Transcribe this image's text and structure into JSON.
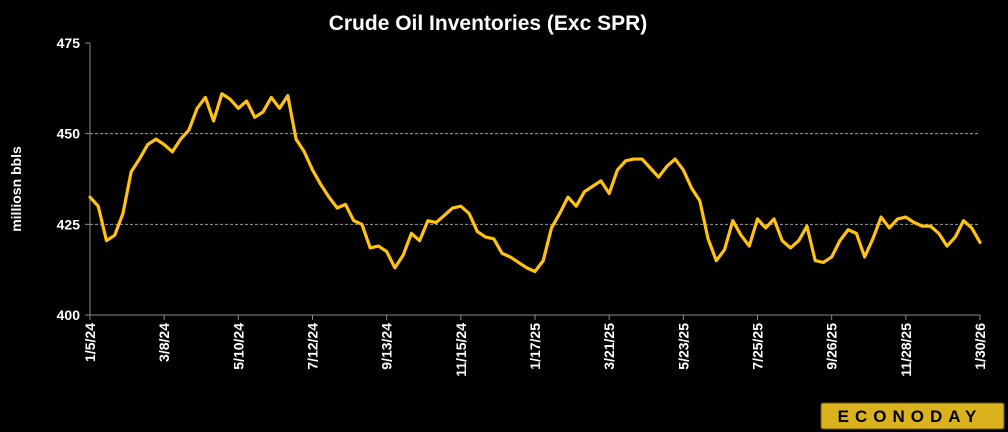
{
  "colors": {
    "background": "#000000",
    "line": "#FFC20E",
    "grid": "#9a9a9a",
    "axis": "#8a8a8a",
    "text": "#ffffff",
    "logo_bg": "#D9B21E"
  },
  "brand": {
    "logo_text": "ECONODAY"
  },
  "chart_data": {
    "type": "line",
    "title": "Crude Oil Inventories (Exc SPR)",
    "xlabel": "",
    "ylabel": "milliosn bbls",
    "ylim": [
      400,
      475
    ],
    "y_ticks": [
      400,
      425,
      450,
      475
    ],
    "grid_lines_at": [
      425,
      450
    ],
    "grid": true,
    "x_tick_labels": [
      "1/5/24",
      "3/8/24",
      "5/10/24",
      "7/12/24",
      "9/13/24",
      "11/15/24",
      "1/17/25",
      "3/21/25",
      "5/23/25",
      "7/25/25",
      "9/26/25",
      "11/28/25",
      "1/30/26"
    ],
    "x_tick_indices": [
      0,
      9,
      18,
      27,
      36,
      45,
      54,
      63,
      72,
      81,
      90,
      99,
      108
    ],
    "series": [
      {
        "values": [
          432.5,
          430.0,
          420.5,
          422.0,
          428.0,
          439.5,
          443.0,
          447.0,
          448.5,
          447.0,
          445.0,
          448.5,
          451.0,
          457.0,
          460.0,
          453.5,
          461.0,
          459.5,
          457.0,
          459.0,
          454.5,
          456.0,
          460.0,
          457.0,
          460.5,
          448.5,
          445.0,
          440.0,
          436.0,
          432.5,
          429.5,
          430.5,
          426.0,
          425.0,
          418.5,
          419.0,
          417.5,
          413.0,
          416.5,
          422.5,
          420.5,
          426.0,
          425.5,
          427.5,
          429.5,
          430.0,
          428.0,
          423.0,
          421.5,
          421.0,
          417.0,
          416.0,
          414.5,
          413.0,
          412.0,
          415.0,
          424.0,
          428.0,
          432.5,
          430.0,
          434.0,
          435.5,
          437.0,
          433.5,
          440.0,
          442.5,
          443.0,
          443.0,
          440.5,
          438.0,
          441.0,
          443.0,
          440.0,
          435.0,
          431.5,
          421.0,
          415.0,
          418.0,
          426.0,
          422.0,
          419.0,
          426.5,
          424.0,
          426.5,
          420.5,
          418.5,
          420.5,
          424.5,
          415.0,
          414.5,
          416.0,
          420.5,
          423.5,
          422.5,
          416.0,
          421.0,
          427.0,
          424.0,
          426.5,
          427.0,
          425.5,
          424.5,
          424.5,
          422.5,
          419.0,
          421.5,
          426.0,
          424.0,
          420.0
        ]
      }
    ]
  }
}
